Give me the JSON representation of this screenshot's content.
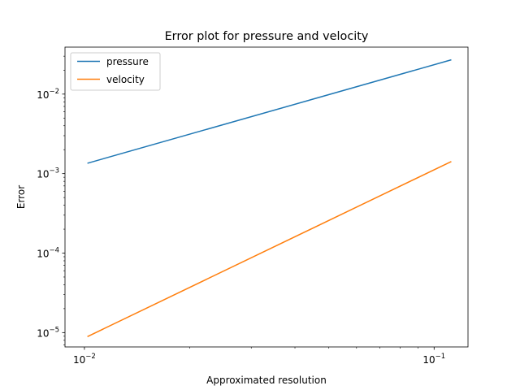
{
  "chart_data": {
    "type": "line",
    "title": "Error plot for pressure and velocity",
    "xlabel": "Approximated resolution",
    "ylabel": "Error",
    "xscale": "log",
    "yscale": "log",
    "xlim": [
      0.0088,
      0.125
    ],
    "ylim": [
      6.6e-06,
      0.039
    ],
    "grid": false,
    "legend_position": "top-left",
    "x_major_ticks": [
      {
        "value": 0.01,
        "base": "10",
        "exp": "−2"
      },
      {
        "value": 0.1,
        "base": "10",
        "exp": "−1"
      }
    ],
    "x_minor_ticks": [
      0.02,
      0.03,
      0.04,
      0.05,
      0.06,
      0.07,
      0.08,
      0.09
    ],
    "y_major_ticks": [
      {
        "value": 1e-05,
        "base": "10",
        "exp": "−5"
      },
      {
        "value": 0.0001,
        "base": "10",
        "exp": "−4"
      },
      {
        "value": 0.001,
        "base": "10",
        "exp": "−3"
      },
      {
        "value": 0.01,
        "base": "10",
        "exp": "−2"
      }
    ],
    "series": [
      {
        "name": "pressure",
        "color": "#1f77b4",
        "x": [
          0.0102,
          0.112
        ],
        "y": [
          0.00135,
          0.027
        ]
      },
      {
        "name": "velocity",
        "color": "#ff7f0e",
        "x": [
          0.0102,
          0.112
        ],
        "y": [
          8.9e-06,
          0.00142
        ]
      }
    ]
  }
}
